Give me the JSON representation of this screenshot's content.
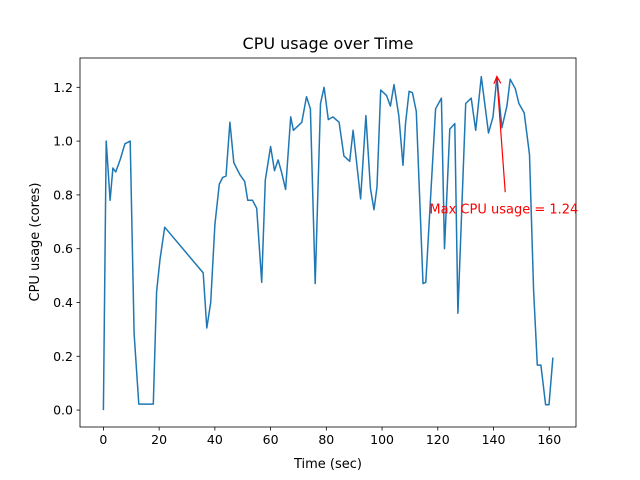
{
  "chart_data": {
    "type": "line",
    "title": "CPU usage over Time",
    "xlabel": "Time (sec)",
    "ylabel": "CPU usage (cores)",
    "xlim": [
      -8.4,
      169.6
    ],
    "ylim": [
      -0.063,
      1.309
    ],
    "xticks": [
      0,
      20,
      40,
      60,
      80,
      100,
      120,
      140,
      160
    ],
    "xtick_labels": [
      "0",
      "20",
      "40",
      "60",
      "80",
      "100",
      "120",
      "140",
      "160"
    ],
    "yticks": [
      0.0,
      0.2,
      0.4,
      0.6,
      0.8,
      1.0,
      1.2
    ],
    "ytick_labels": [
      "0.0",
      "0.2",
      "0.4",
      "0.6",
      "0.8",
      "1.0",
      "1.2"
    ],
    "grid": false,
    "series": [
      {
        "name": "CPU usage",
        "color": "#1f77b4",
        "x": [
          0,
          1.0,
          2.4,
          3.4,
          4.4,
          6.0,
          7.7,
          9.6,
          11.0,
          12.7,
          17.9,
          19.1,
          20.3,
          22.0,
          35.8,
          37.1,
          38.5,
          40.0,
          41.6,
          42.8,
          44.0,
          45.4,
          46.8,
          49.0,
          50.7,
          51.8,
          53.5,
          55.0,
          56.8,
          58.1,
          60.0,
          61.4,
          62.7,
          63.9,
          65.4,
          67.2,
          68.2,
          71.2,
          72.9,
          74.3,
          76.0,
          77.9,
          79.2,
          80.7,
          82.4,
          84.6,
          86.3,
          88.4,
          89.6,
          92.3,
          94.2,
          95.8,
          97.1,
          98.2,
          99.5,
          101.6,
          103.0,
          104.3,
          106.0,
          107.5,
          108.4,
          109.7,
          110.9,
          112.3,
          114.7,
          115.7,
          119.2,
          121.3,
          122.4,
          124.3,
          126.1,
          127.2,
          130.0,
          132.0,
          133.6,
          135.6,
          138.2,
          139.8,
          141.2,
          143.0,
          144.8,
          146.0,
          147.8,
          149.1,
          151.0,
          152.9,
          154.4,
          155.7,
          157.0,
          158.7,
          159.9,
          161.3
        ],
        "y": [
          0.0,
          1.0,
          0.78,
          0.9,
          0.885,
          0.93,
          0.99,
          1.0,
          0.285,
          0.022,
          0.022,
          0.44,
          0.56,
          0.68,
          0.51,
          0.305,
          0.4,
          0.69,
          0.84,
          0.865,
          0.87,
          1.07,
          0.92,
          0.875,
          0.85,
          0.78,
          0.78,
          0.75,
          0.475,
          0.855,
          0.98,
          0.89,
          0.93,
          0.885,
          0.82,
          1.09,
          1.04,
          1.07,
          1.165,
          1.12,
          0.47,
          1.14,
          1.2,
          1.08,
          1.09,
          1.07,
          0.945,
          0.925,
          1.04,
          0.785,
          1.095,
          0.825,
          0.745,
          0.83,
          1.19,
          1.17,
          1.13,
          1.21,
          1.095,
          0.91,
          1.065,
          1.185,
          1.18,
          1.11,
          0.47,
          0.475,
          1.12,
          1.16,
          0.6,
          1.045,
          1.065,
          0.36,
          1.14,
          1.16,
          1.04,
          1.24,
          1.03,
          1.09,
          1.24,
          1.05,
          1.13,
          1.23,
          1.195,
          1.14,
          1.105,
          0.95,
          0.445,
          0.167,
          0.167,
          0.02,
          0.02,
          0.195
        ]
      }
    ],
    "annotation": {
      "text": "Max CPU usage = 1.24",
      "color": "#ff0000",
      "xy": [
        141.2,
        1.24
      ],
      "xytext": [
        117,
        0.75
      ],
      "arrow_tail": [
        144.2,
        0.81
      ]
    }
  }
}
